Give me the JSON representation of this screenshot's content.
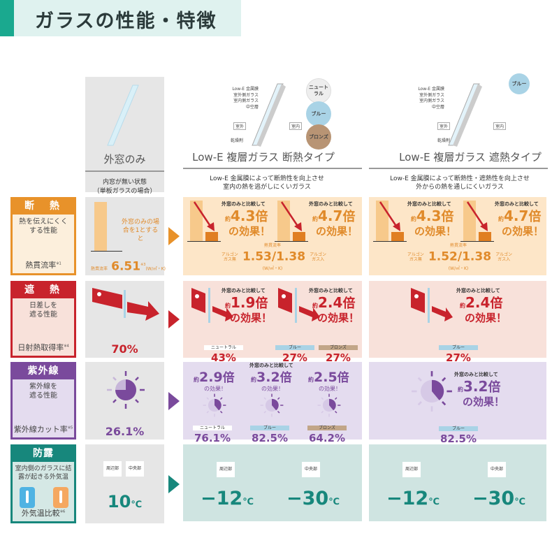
{
  "title": "ガラスの性能・特徴",
  "columns": [
    {
      "name": "外窓のみ",
      "desc1": "内窓が無い状態",
      "desc2": "（単板ガラスの場合）"
    },
    {
      "name": "Low-E 複層ガラス 断熱タイプ",
      "desc1": "Low-E 金属膜によって断熱性を向上させ",
      "desc2": "室内の熱を逃がしにくいガラス",
      "colors": [
        "ニュートラル",
        "ブルー",
        "ブロンズ"
      ]
    },
    {
      "name": "Low-E 複層ガラス 遮熱タイプ",
      "desc1": "Low-E 金属膜によって断熱性・遮熱性を向上させ",
      "desc2": "外からの熱を通しにくいガラス",
      "colors": [
        "ブルー"
      ]
    }
  ],
  "diagram": {
    "lowe": "Low-E 金属膜",
    "outer": "室外側ガラス",
    "inner": "室内側ガラス",
    "air": "中空層",
    "outside": "室外",
    "inside": "室内",
    "spacer": "乾燥剤"
  },
  "compare": "外窓のみと比較して",
  "approx": "約",
  "times": "倍",
  "effect": "の効果！",
  "rows": {
    "insulation": {
      "head": "断　熱",
      "desc": "熱を伝えにくくする性能",
      "metric": "熱貫流率",
      "note": "※1",
      "color": "#e8922a",
      "base_text": "外窓のみの場合を1とすると",
      "base_label": "熱貫流率",
      "base_value": "6.51",
      "base_note": "※3",
      "unit": "(W/㎡・K)",
      "argon_no": "アルゴンガス無",
      "argon_yes": "アルゴンガス入",
      "c2": {
        "x": [
          "4.3",
          "4.7"
        ],
        "value": "1.53/1.38"
      },
      "c3": {
        "x": [
          "4.3",
          "4.7"
        ],
        "value": "1.52/1.38"
      }
    },
    "solar": {
      "head": "遮　熱",
      "desc": "日差しを遮る性能",
      "metric": "日射熱取得率",
      "note": "※4",
      "color": "#c8232c",
      "base_value": "70%",
      "c2": [
        {
          "x": "1.9",
          "tags": [
            "ニュートラル"
          ],
          "values": [
            "43%"
          ]
        },
        {
          "x": "2.4",
          "tags": [
            "ブルー",
            "ブロンズ"
          ],
          "values": [
            "27%",
            "27%"
          ]
        }
      ],
      "c3": {
        "x": "2.4",
        "tag": "ブルー",
        "value": "27%"
      }
    },
    "uv": {
      "head": "紫外線",
      "desc": "紫外線を遮る性能",
      "metric": "紫外線カット率",
      "note": "※5",
      "color": "#7a4a9c",
      "base_value": "26.1%",
      "c2": [
        {
          "x": "2.9",
          "tag": "ニュートラル",
          "value": "76.1%"
        },
        {
          "x": "3.2",
          "tag": "ブルー",
          "value": "82.5%"
        },
        {
          "x": "2.5",
          "tag": "ブロンズ",
          "value": "64.2%"
        }
      ],
      "c3": {
        "x": "3.2",
        "tag": "ブルー",
        "value": "82.5%"
      },
      "short_effect": "の効果！"
    },
    "dew": {
      "head": "防露",
      "desc": "室内側のガラスに結露が起きる外気温",
      "metric": "外気温比較",
      "note": "※6",
      "color": "#17877c",
      "edge": "周辺部",
      "center": "中央部",
      "base_value": "10",
      "unit": "℃",
      "c2": [
        "−12",
        "−30"
      ],
      "c3": [
        "−12",
        "−30"
      ]
    }
  },
  "tag_colors": {
    "ニュートラル": "#ffffff",
    "ブルー": "#a9d3e6",
    "ブロンズ": "#c2a688"
  }
}
